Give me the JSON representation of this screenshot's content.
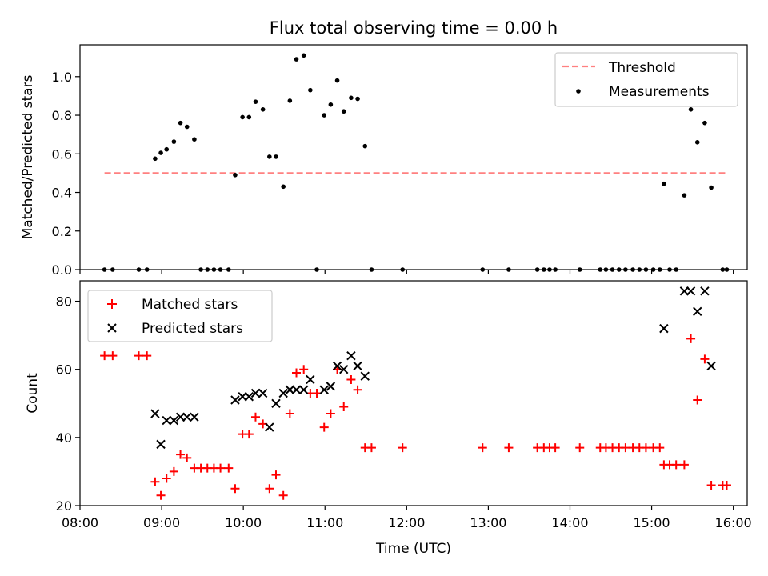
{
  "title": "Flux total observing time = 0.00 h",
  "chart_data": [
    {
      "type": "scatter",
      "title": "Flux total observing time = 0.00 h",
      "xlabel": "",
      "ylabel": "Matched/Predicted stars",
      "xlim": [
        8.0,
        16.17
      ],
      "ylim": [
        0.0,
        1.165
      ],
      "yticks": [
        0.0,
        0.2,
        0.4,
        0.6,
        0.8,
        1.0
      ],
      "ytick_labels": [
        "0.0",
        "0.2",
        "0.4",
        "0.6",
        "0.8",
        "1.0"
      ],
      "xticks": [
        8,
        9,
        10,
        11,
        12,
        13,
        14,
        15,
        16
      ],
      "threshold": {
        "name": "Threshold",
        "value": 0.5,
        "x": [
          8.3,
          15.9
        ],
        "color": "#ff8080"
      },
      "legend": {
        "location": "upper right",
        "entries": [
          "Threshold",
          "Measurements"
        ]
      },
      "series": [
        {
          "name": "Measurements",
          "color": "#000000",
          "marker": "dot",
          "x": [
            8.3,
            8.4,
            8.72,
            8.82,
            8.92,
            8.99,
            9.06,
            9.15,
            9.23,
            9.31,
            9.4,
            9.48,
            9.56,
            9.64,
            9.72,
            9.82,
            9.9,
            9.99,
            10.07,
            10.15,
            10.24,
            10.32,
            10.4,
            10.49,
            10.57,
            10.65,
            10.74,
            10.82,
            10.9,
            10.99,
            11.07,
            11.15,
            11.23,
            11.32,
            11.4,
            11.49,
            11.57,
            11.95,
            12.93,
            13.25,
            13.6,
            13.68,
            13.75,
            13.82,
            14.12,
            14.37,
            14.44,
            14.52,
            14.6,
            14.68,
            14.77,
            14.85,
            14.93,
            15.02,
            15.1,
            15.15,
            15.22,
            15.3,
            15.4,
            15.48,
            15.56,
            15.65,
            15.73,
            15.87,
            15.92
          ],
          "y": [
            0.0,
            0.0,
            0.0,
            0.0,
            0.575,
            0.605,
            0.623,
            0.663,
            0.76,
            0.74,
            0.675,
            0.0,
            0.0,
            0.0,
            0.0,
            0.0,
            0.49,
            0.79,
            0.79,
            0.87,
            0.83,
            0.585,
            0.585,
            0.43,
            0.875,
            1.09,
            1.11,
            0.93,
            0.0,
            0.8,
            0.855,
            0.98,
            0.82,
            0.89,
            0.885,
            0.64,
            0.0,
            0.0,
            0.0,
            0.0,
            0.0,
            0.0,
            0.0,
            0.0,
            0.0,
            0.0,
            0.0,
            0.0,
            0.0,
            0.0,
            0.0,
            0.0,
            0.0,
            0.0,
            0.0,
            0.445,
            0.0,
            0.0,
            0.385,
            0.83,
            0.66,
            0.76,
            0.425,
            0.0,
            0.0
          ]
        }
      ]
    },
    {
      "type": "scatter",
      "title": "",
      "xlabel": "Time (UTC)",
      "ylabel": "Count",
      "xlim": [
        8.0,
        16.17
      ],
      "ylim": [
        20,
        86
      ],
      "yticks": [
        20,
        40,
        60,
        80
      ],
      "ytick_labels": [
        "20",
        "40",
        "60",
        "80"
      ],
      "xticks": [
        8,
        9,
        10,
        11,
        12,
        13,
        14,
        15,
        16
      ],
      "xtick_labels": [
        "08:00",
        "09:00",
        "10:00",
        "11:00",
        "12:00",
        "13:00",
        "14:00",
        "15:00",
        "16:00"
      ],
      "legend": {
        "location": "upper left",
        "entries": [
          "Matched stars",
          "Predicted stars"
        ]
      },
      "series": [
        {
          "name": "Matched stars",
          "color": "#ff0000",
          "marker": "plus",
          "x": [
            8.3,
            8.4,
            8.72,
            8.82,
            8.92,
            8.99,
            9.06,
            9.15,
            9.23,
            9.31,
            9.4,
            9.48,
            9.56,
            9.64,
            9.72,
            9.82,
            9.9,
            9.99,
            10.07,
            10.15,
            10.24,
            10.32,
            10.4,
            10.49,
            10.57,
            10.65,
            10.74,
            10.82,
            10.9,
            10.99,
            11.07,
            11.15,
            11.23,
            11.32,
            11.4,
            11.49,
            11.57,
            11.95,
            12.93,
            13.25,
            13.6,
            13.68,
            13.75,
            13.82,
            14.12,
            14.37,
            14.44,
            14.52,
            14.6,
            14.68,
            14.77,
            14.85,
            14.93,
            15.02,
            15.1,
            15.15,
            15.22,
            15.3,
            15.4,
            15.48,
            15.56,
            15.65,
            15.73,
            15.87,
            15.92
          ],
          "y": [
            64,
            64,
            64,
            64,
            27,
            23,
            28,
            30,
            35,
            34,
            31,
            31,
            31,
            31,
            31,
            31,
            25,
            41,
            41,
            46,
            44,
            25,
            29,
            23,
            47,
            59,
            60,
            53,
            53,
            43,
            47,
            60,
            49,
            57,
            54,
            37,
            37,
            37,
            37,
            37,
            37,
            37,
            37,
            37,
            37,
            37,
            37,
            37,
            37,
            37,
            37,
            37,
            37,
            37,
            37,
            32,
            32,
            32,
            32,
            69,
            51,
            63,
            26,
            26,
            26
          ]
        },
        {
          "name": "Predicted stars",
          "color": "#000000",
          "marker": "x",
          "x": [
            8.92,
            8.99,
            9.06,
            9.15,
            9.23,
            9.31,
            9.4,
            9.9,
            9.99,
            10.07,
            10.15,
            10.24,
            10.32,
            10.4,
            10.49,
            10.57,
            10.65,
            10.74,
            10.82,
            10.99,
            11.07,
            11.15,
            11.23,
            11.32,
            11.4,
            11.49,
            15.15,
            15.4,
            15.48,
            15.56,
            15.65,
            15.73
          ],
          "y": [
            47,
            38,
            45,
            45,
            46,
            46,
            46,
            51,
            52,
            52,
            53,
            53,
            43,
            50,
            53,
            54,
            54,
            54,
            57,
            54,
            55,
            61,
            60,
            64,
            61,
            58,
            72,
            83,
            83,
            77,
            83,
            61
          ]
        }
      ]
    }
  ]
}
